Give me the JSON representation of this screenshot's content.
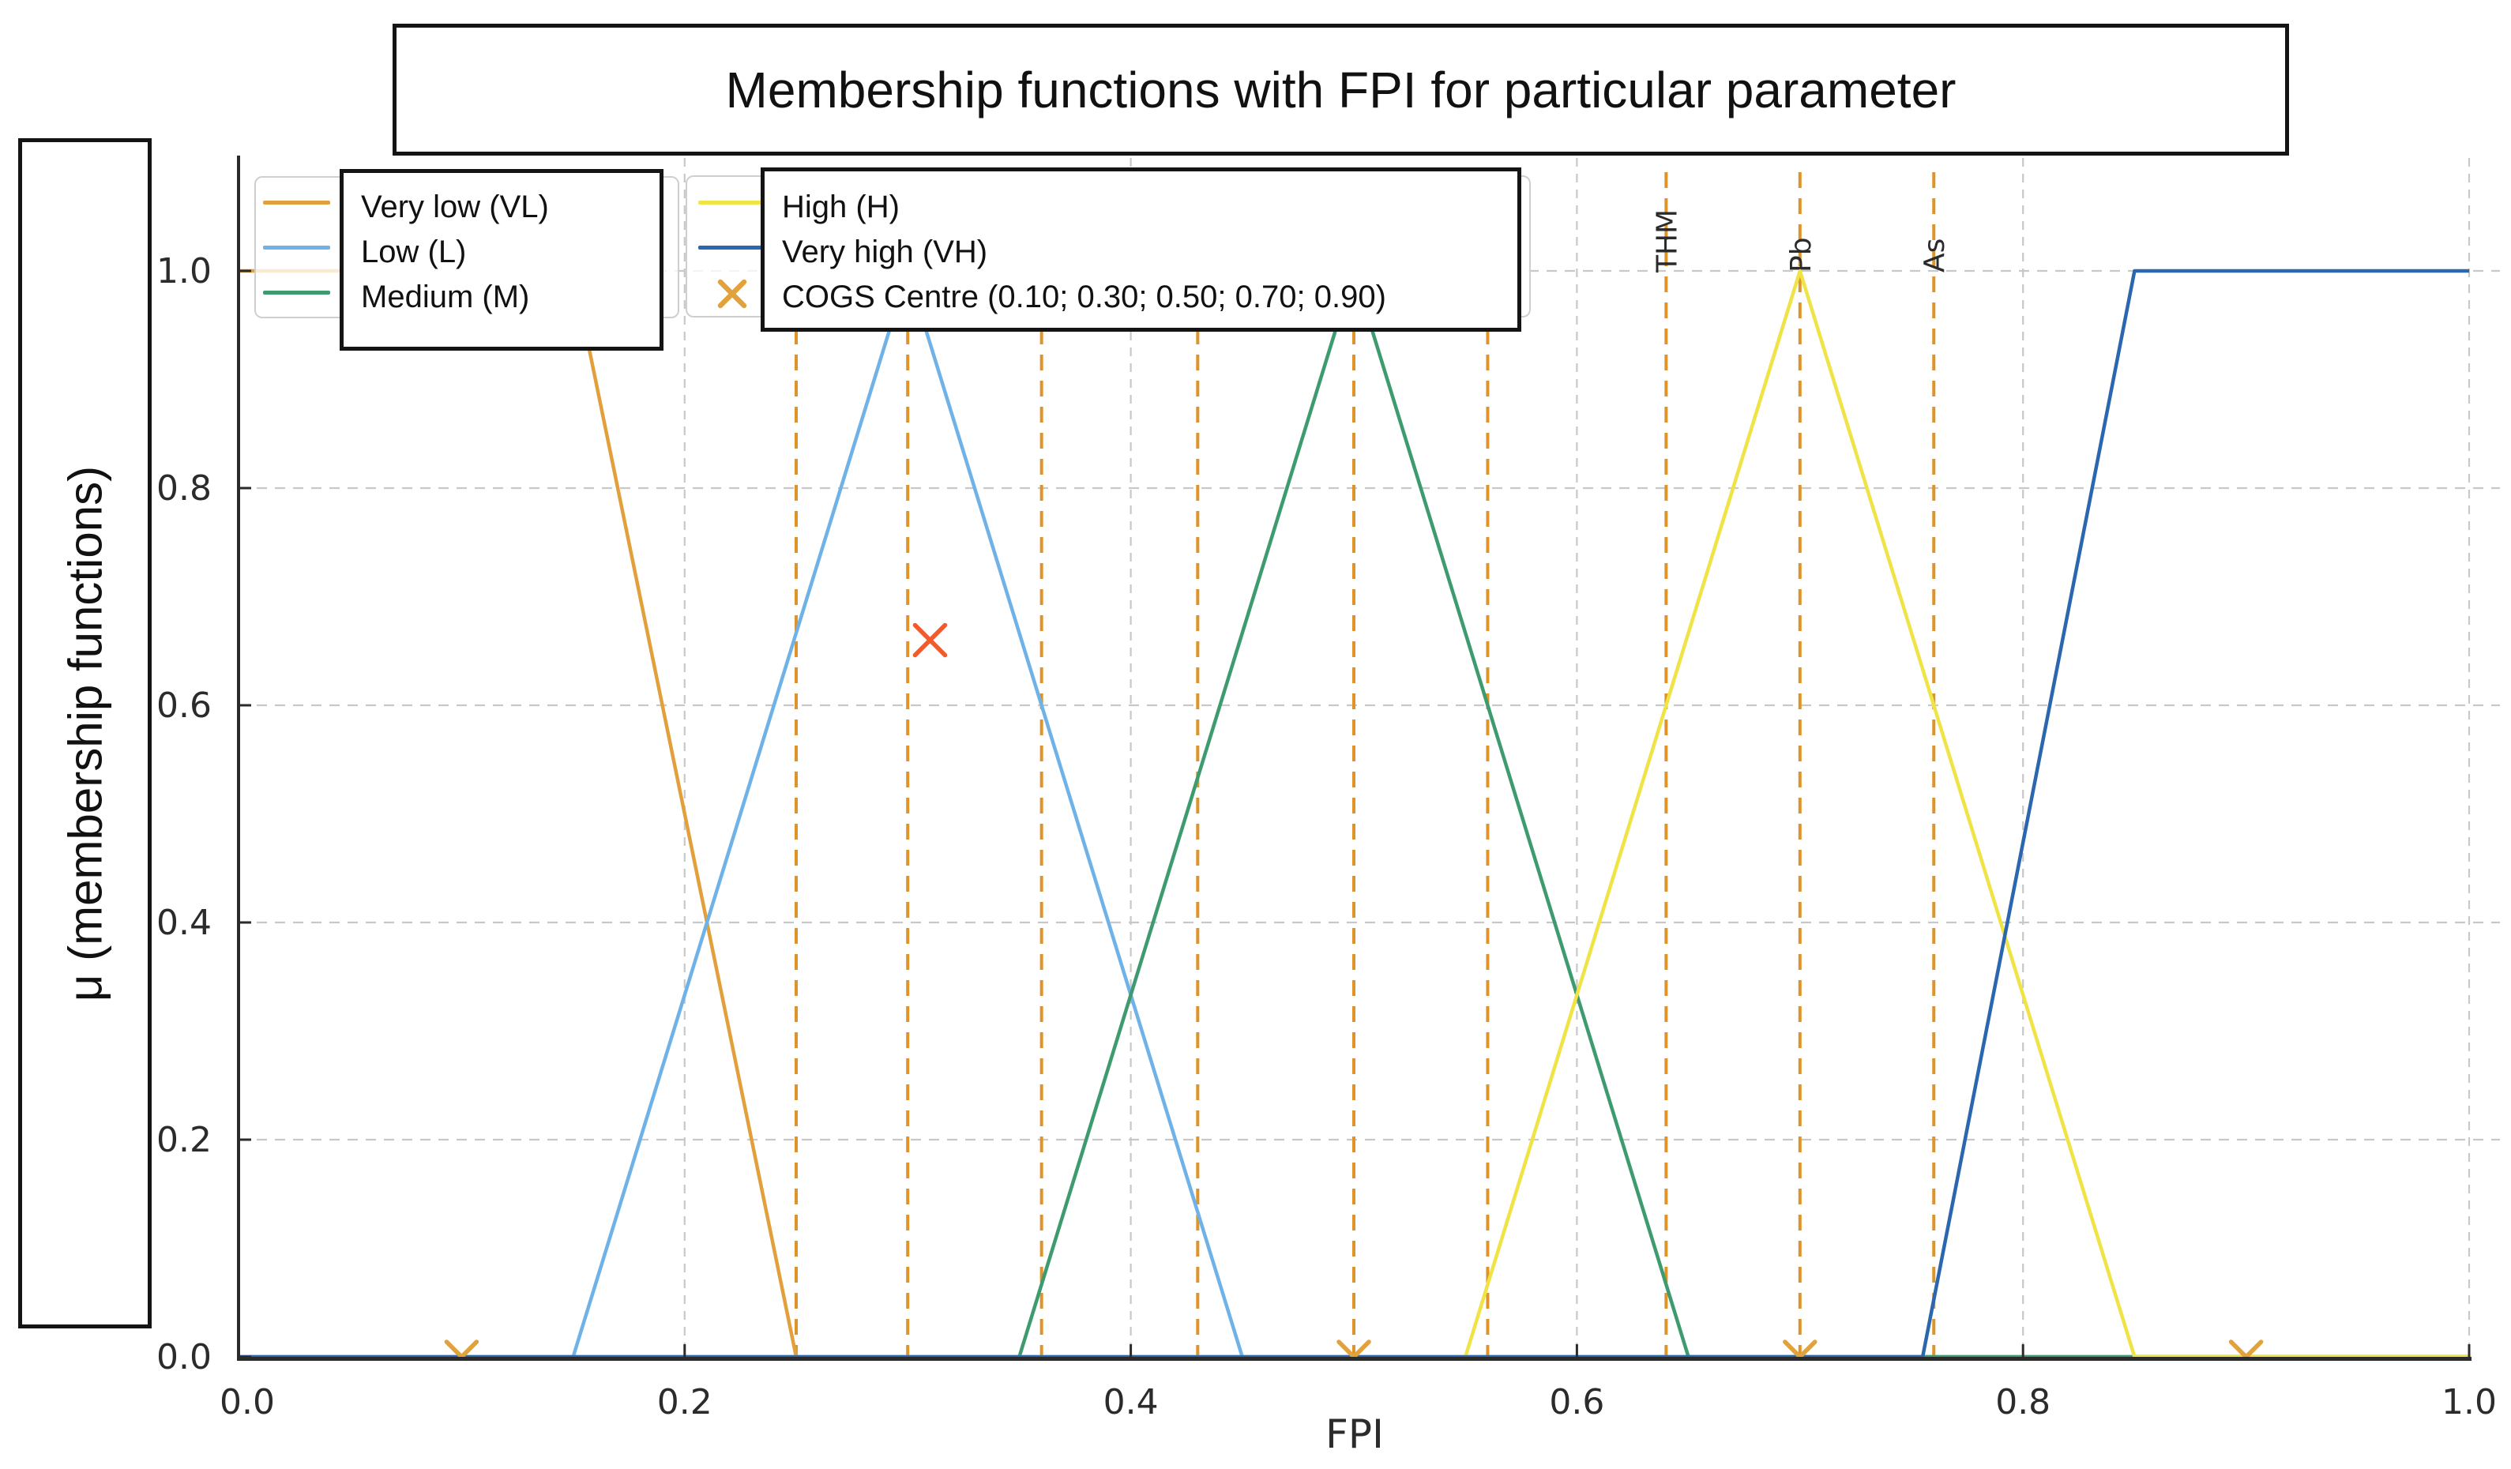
{
  "title": "Membership functions with FPI for particular parameter",
  "legend": {
    "box1": [
      {
        "label": "Very low (VL)",
        "color": "#E2A03C"
      },
      {
        "label": "Low (L)",
        "color": "#6FB2E8"
      },
      {
        "label": "Medium (M)",
        "color": "#3D9B6F"
      }
    ],
    "box2": [
      {
        "label": "High (H)",
        "color": "#EFE345"
      },
      {
        "label": "Very high (VH)",
        "color": "#2A67AE"
      },
      {
        "label": "COGS Centre (0.10; 0.30; 0.50; 0.70; 0.90)",
        "color": "#E2A23B"
      }
    ]
  },
  "chart_data": {
    "type": "line",
    "title": "Membership functions with FPI for particular parameter",
    "xlabel": "FPI",
    "ylabel": "μ (membership functions)",
    "xlim": [
      0.0,
      1.0
    ],
    "ylim": [
      0.0,
      1.1
    ],
    "grid": true,
    "x_ticks": [
      "0.0",
      "0.2",
      "0.4",
      "0.6",
      "0.8",
      "1.0"
    ],
    "y_ticks": [
      "0.0",
      "0.2",
      "0.4",
      "0.6",
      "0.8",
      "1.0"
    ],
    "series": [
      {
        "name": "Very low (VL)",
        "color": "#E2A03C",
        "points": [
          [
            0.0,
            1.0
          ],
          [
            0.15,
            1.0
          ],
          [
            0.25,
            0.0
          ],
          [
            1.0,
            0.0
          ]
        ]
      },
      {
        "name": "Low (L)",
        "color": "#6FB2E8",
        "points": [
          [
            0.0,
            0.0
          ],
          [
            0.15,
            0.0
          ],
          [
            0.3,
            1.0
          ],
          [
            0.45,
            0.0
          ],
          [
            1.0,
            0.0
          ]
        ]
      },
      {
        "name": "Medium (M)",
        "color": "#3D9B6F",
        "points": [
          [
            0.0,
            0.0
          ],
          [
            0.35,
            0.0
          ],
          [
            0.5,
            1.0
          ],
          [
            0.65,
            0.0
          ],
          [
            1.0,
            0.0
          ]
        ]
      },
      {
        "name": "High (H)",
        "color": "#EFE345",
        "points": [
          [
            0.0,
            0.0
          ],
          [
            0.55,
            0.0
          ],
          [
            0.7,
            1.0
          ],
          [
            0.85,
            0.0
          ],
          [
            1.0,
            0.0
          ]
        ]
      },
      {
        "name": "Very high (VH)",
        "color": "#2A67AE",
        "points": [
          [
            0.0,
            0.0
          ],
          [
            0.755,
            0.0
          ],
          [
            0.85,
            1.0
          ],
          [
            1.0,
            1.0
          ]
        ]
      }
    ],
    "cogs_markers": {
      "label": "COGS Centre (0.10; 0.30; 0.50; 0.70; 0.90)",
      "color": "#E2A23B",
      "baseline_points": [
        0.1,
        0.5,
        0.7,
        0.9
      ],
      "float_point": {
        "x": 0.31,
        "y": 0.66,
        "color": "#F15B2E"
      }
    },
    "param_lines": {
      "color": "#DE9428",
      "values": [
        {
          "label": "",
          "x": 0.25
        },
        {
          "label": "",
          "x": 0.3
        },
        {
          "label": "",
          "x": 0.36
        },
        {
          "label": "",
          "x": 0.43
        },
        {
          "label": "",
          "x": 0.5
        },
        {
          "label": "",
          "x": 0.56
        },
        {
          "label": "THM",
          "x": 0.64
        },
        {
          "label": "Pb",
          "x": 0.7
        },
        {
          "label": "As",
          "x": 0.76
        }
      ]
    }
  }
}
